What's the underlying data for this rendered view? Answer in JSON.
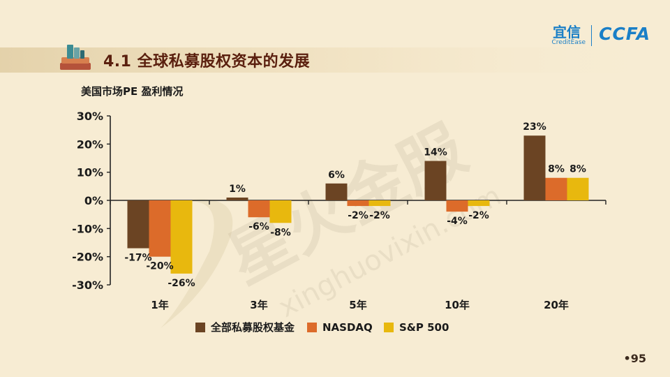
{
  "header": {
    "title": "4.1 全球私募股权资本的发展",
    "brand_cn": "宜信",
    "brand_en": "CreditEase",
    "brand_ccfa": "CCFA"
  },
  "page_number": "•95",
  "colors": {
    "background": "#f7ecd3",
    "title": "#5a1f0e",
    "brand": "#1a7fc7"
  },
  "chart_data": {
    "type": "bar",
    "title": "美国市场PE 盈利情况",
    "categories": [
      "1年",
      "3年",
      "5年",
      "10年",
      "20年"
    ],
    "series": [
      {
        "name": "全部私募股权基金",
        "color": "#6b4423",
        "values": [
          -17,
          1,
          6,
          14,
          23
        ],
        "labels": [
          "-17%",
          "1%",
          "6%",
          "14%",
          "23%"
        ]
      },
      {
        "name": "NASDAQ",
        "color": "#dc6b2a",
        "values": [
          -20,
          -6,
          -2,
          -4,
          8
        ],
        "labels": [
          "-20%",
          "-6%",
          "-2%",
          "-4%",
          "8%"
        ]
      },
      {
        "name": "S&P  500",
        "color": "#e8b80e",
        "values": [
          -26,
          -8,
          -2,
          -2,
          8
        ],
        "labels": [
          "-26%",
          "-8%",
          "-2%",
          "-2%",
          "8%"
        ]
      }
    ],
    "yticks": [
      "30%",
      "20%",
      "10%",
      "0%",
      "-10%",
      "-20%",
      "-30%"
    ],
    "ylim": [
      -30,
      30
    ],
    "grid": false,
    "legend": "bottom"
  }
}
